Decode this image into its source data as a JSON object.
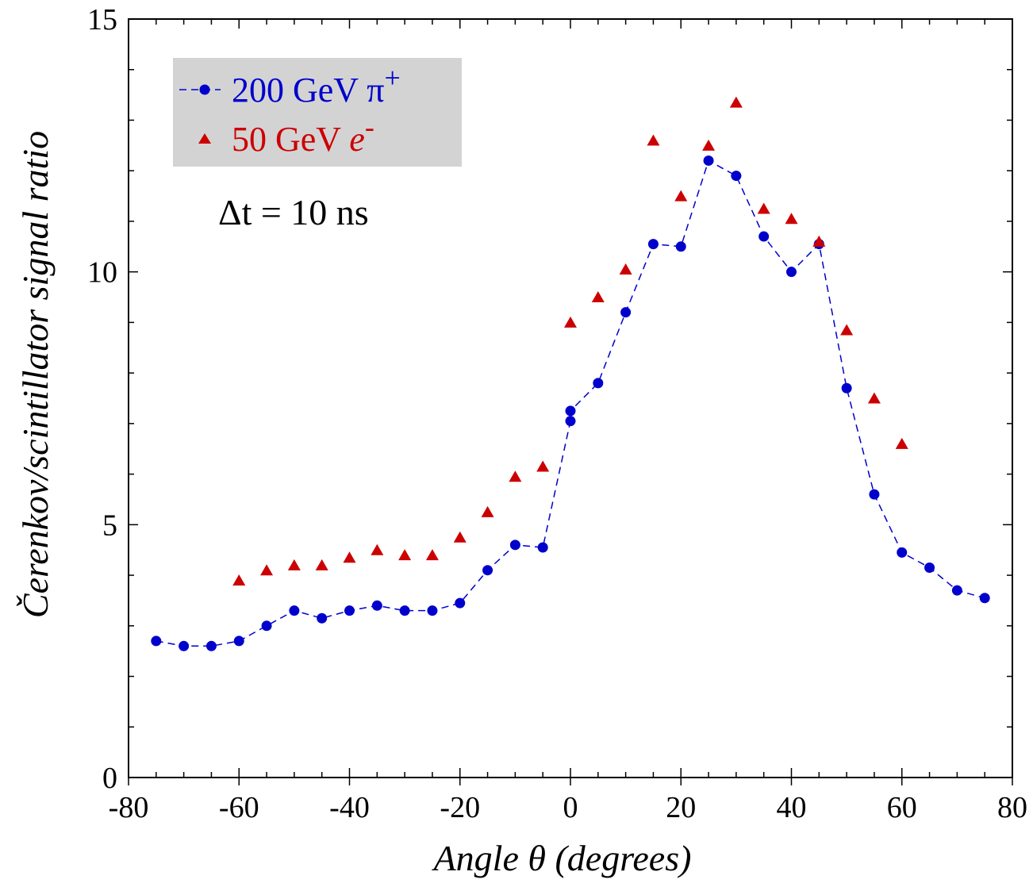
{
  "chart_data": {
    "type": "scatter",
    "xlabel": "Angle θ (degrees)",
    "ylabel": "Čerenkov/scintillator signal ratio",
    "xlim": [
      -80,
      80
    ],
    "ylim": [
      0,
      15
    ],
    "xticks": [
      -80,
      -60,
      -40,
      -20,
      0,
      20,
      40,
      60,
      80
    ],
    "yticks": [
      0,
      5,
      10,
      15
    ],
    "grid": false,
    "legend_position": "top-left",
    "annotation": "Δt = 10 ns",
    "series": [
      {
        "name": "200 GeV π+",
        "label_main": "200 GeV π",
        "label_sup": "+",
        "color": "#0000cc",
        "marker": "circle",
        "line": "dashed",
        "x": [
          -75,
          -70,
          -65,
          -60,
          -55,
          -50,
          -45,
          -40,
          -35,
          -30,
          -25,
          -20,
          -15,
          -10,
          -5,
          0,
          0,
          5,
          10,
          15,
          20,
          25,
          30,
          35,
          40,
          45,
          50,
          55,
          60,
          65,
          70,
          75
        ],
        "y": [
          2.7,
          2.6,
          2.6,
          2.7,
          3.0,
          3.3,
          3.15,
          3.3,
          3.4,
          3.3,
          3.3,
          3.45,
          4.1,
          4.6,
          4.55,
          7.05,
          7.25,
          7.8,
          9.2,
          10.55,
          10.5,
          12.2,
          11.9,
          10.7,
          10.0,
          10.55,
          7.7,
          5.6,
          4.45,
          4.15,
          3.7,
          3.55
        ]
      },
      {
        "name": "50 GeV e-",
        "label_main": "50 GeV ",
        "label_italic": "e",
        "label_sup": "-",
        "color": "#cc0000",
        "marker": "triangle",
        "line": "none",
        "x": [
          -60,
          -55,
          -50,
          -45,
          -40,
          -35,
          -30,
          -25,
          -20,
          -15,
          -10,
          -5,
          0,
          5,
          10,
          15,
          20,
          25,
          30,
          35,
          40,
          45,
          50,
          55,
          60
        ],
        "y": [
          3.9,
          4.1,
          4.2,
          4.2,
          4.35,
          4.5,
          4.4,
          4.4,
          4.75,
          5.25,
          5.95,
          6.15,
          9.0,
          9.5,
          10.05,
          12.6,
          11.5,
          12.5,
          13.35,
          11.25,
          11.05,
          10.6,
          8.85,
          7.5,
          6.6
        ]
      }
    ]
  },
  "colors": {
    "legend_background": "#d3d3d3",
    "axis": "#000000"
  }
}
